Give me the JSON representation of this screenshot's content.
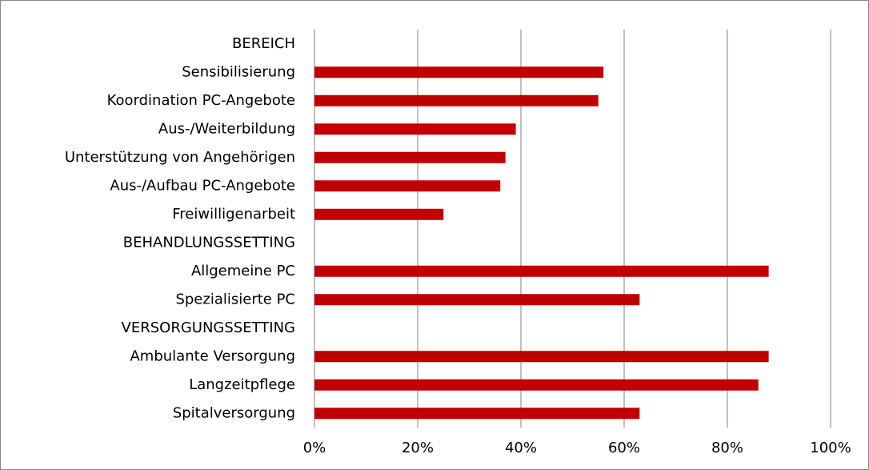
{
  "chart_data": {
    "type": "bar",
    "orientation": "horizontal",
    "categories": [
      "BEREICH",
      "Sensibilisierung",
      "Koordination PC-Angebote",
      "Aus-/Weiterbildung",
      "Unterstützung von Angehörigen",
      "Aus-/Aufbau PC-Angebote",
      "Freiwilligenarbeit",
      "BEHANDLUNGSSETTING",
      "Allgemeine PC",
      "Spezialisierte PC",
      "VERSORGUNGSSETTING",
      "Ambulante Versorgung",
      "Langzeitpflege",
      "Spitalversorgung"
    ],
    "values": [
      null,
      56,
      55,
      39,
      37,
      36,
      25,
      null,
      88,
      63,
      null,
      88,
      86,
      63
    ],
    "color": "#c00000",
    "xlim": [
      0,
      100
    ],
    "xticks": [
      {
        "value": 0,
        "label": "0%"
      },
      {
        "value": 20,
        "label": "20%"
      },
      {
        "value": 40,
        "label": "40%"
      },
      {
        "value": 60,
        "label": "60%"
      },
      {
        "value": 80,
        "label": "80%"
      },
      {
        "value": 100,
        "label": "100%"
      }
    ],
    "grid": true
  }
}
